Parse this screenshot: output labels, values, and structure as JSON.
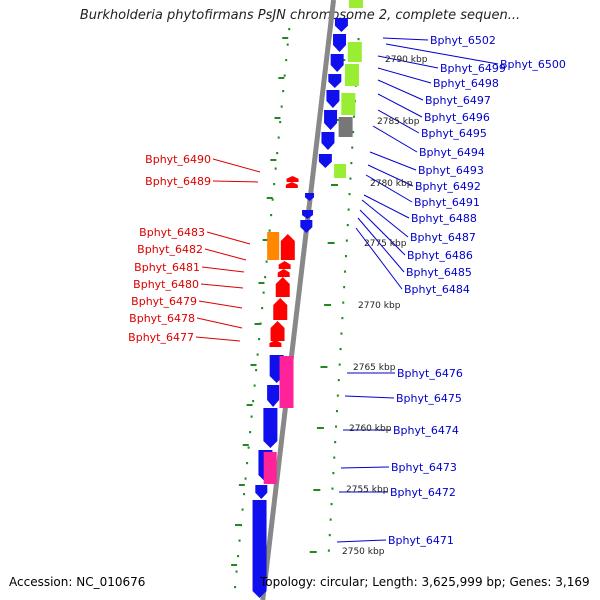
{
  "title": "Burkholderia phytofirmans PsJN chromosome 2, complete sequen...",
  "footer": {
    "accession": "Accession: NC_010676",
    "stats": "Topology: circular; Length: 3,625,999 bp; Genes: 3,169"
  },
  "colors": {
    "positive_strand_cds": "#1010ee",
    "negative_strand_cds": "#ff0000",
    "lime_feature": "#99ee33",
    "magenta_feature": "#ff2299",
    "orange_feature": "#ff8800",
    "gray_feature": "#777777",
    "backbone": "#888888",
    "tick": "#228822",
    "right_label": "#0000cc",
    "left_label": "#dd0000",
    "scale_label": "#222222"
  },
  "scale_labels": [
    "2790 kbp",
    "2785 kbp",
    "2780 kbp",
    "2775 kbp",
    "2770 kbp",
    "2765 kbp",
    "2760 kbp",
    "2755 kbp",
    "2750 kbp"
  ],
  "right_genes": [
    "Bphyt_6502",
    "Bphyt_6500",
    "Bphyt_6499",
    "Bphyt_6498",
    "Bphyt_6497",
    "Bphyt_6496",
    "Bphyt_6495",
    "Bphyt_6494",
    "Bphyt_6493",
    "Bphyt_6492",
    "Bphyt_6491",
    "Bphyt_6488",
    "Bphyt_6487",
    "Bphyt_6486",
    "Bphyt_6485",
    "Bphyt_6484",
    "Bphyt_6476",
    "Bphyt_6475",
    "Bphyt_6474",
    "Bphyt_6473",
    "Bphyt_6472",
    "Bphyt_6471"
  ],
  "left_genes": [
    "Bphyt_6490",
    "Bphyt_6489",
    "Bphyt_6483",
    "Bphyt_6482",
    "Bphyt_6481",
    "Bphyt_6480",
    "Bphyt_6479",
    "Bphyt_6478",
    "Bphyt_6477"
  ]
}
